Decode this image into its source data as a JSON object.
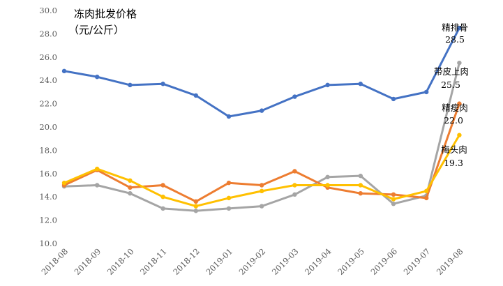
{
  "chart_data": {
    "type": "line",
    "title": "冻肉批发价格",
    "unit": "（元/公斤）",
    "ylim": [
      10,
      30
    ],
    "yticks": [
      "10.0",
      "12.0",
      "14.0",
      "16.0",
      "18.0",
      "20.0",
      "22.0",
      "24.0",
      "26.0",
      "28.0",
      "30.0"
    ],
    "categories": [
      "2018-08",
      "2018-09",
      "2018-10",
      "2018-11",
      "2018-12",
      "2019-01",
      "2019-02",
      "2019-03",
      "2019-04",
      "2019-05",
      "2019-06",
      "2019-07",
      "2019-08"
    ],
    "grid": false,
    "legend": "none",
    "series": [
      {
        "name": "精排骨",
        "value_label": "28.5",
        "color": "#4472C4",
        "values": [
          24.8,
          24.3,
          23.6,
          23.7,
          22.7,
          20.9,
          21.4,
          22.6,
          23.6,
          23.7,
          22.4,
          23.0,
          28.5
        ]
      },
      {
        "name": "精瘦肉",
        "value_label": "22.0",
        "color": "#ED7D31",
        "values": [
          15.0,
          16.3,
          14.8,
          15.0,
          13.6,
          15.2,
          15.0,
          16.2,
          14.8,
          14.3,
          14.2,
          13.9,
          22.0
        ]
      },
      {
        "name": "带皮上肉",
        "value_label": "25.5",
        "color": "#A5A5A5",
        "values": [
          14.9,
          15.0,
          14.3,
          13.0,
          12.8,
          13.0,
          13.2,
          14.2,
          15.7,
          15.8,
          13.4,
          14.1,
          25.5
        ]
      },
      {
        "name": "梅头肉",
        "value_label": "19.3",
        "color": "#FFC000",
        "values": [
          15.2,
          16.4,
          15.4,
          14.0,
          13.2,
          13.9,
          14.5,
          15.0,
          15.0,
          15.0,
          13.8,
          14.5,
          19.3
        ]
      }
    ]
  }
}
